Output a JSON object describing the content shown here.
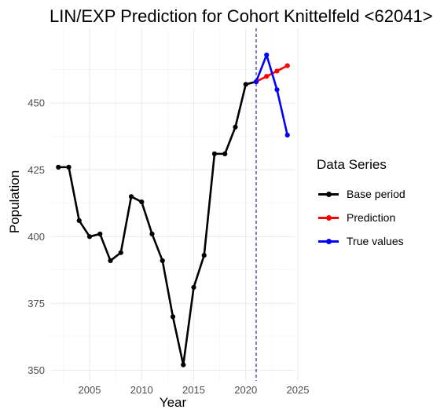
{
  "chart_data": {
    "type": "line",
    "title": "LIN/EXP Prediction for Cohort Knittelfeld <62041>",
    "xlabel": "Year",
    "ylabel": "Population",
    "xlim": [
      2001.3,
      2024.7
    ],
    "ylim": [
      346,
      478
    ],
    "x_ticks": [
      2005,
      2010,
      2015,
      2020,
      2025
    ],
    "y_ticks": [
      350,
      375,
      400,
      425,
      450
    ],
    "grid": true,
    "legend_title": "Data Series",
    "legend_position": "right",
    "vline_x": 2021,
    "series": [
      {
        "name": "Base period",
        "color": "#000000",
        "x": [
          2002,
          2003,
          2004,
          2005,
          2006,
          2007,
          2008,
          2009,
          2010,
          2011,
          2012,
          2013,
          2014,
          2015,
          2016,
          2017,
          2018,
          2019,
          2020,
          2021
        ],
        "y": [
          426,
          426,
          406,
          400,
          401,
          391,
          394,
          415,
          413,
          401,
          391,
          370,
          352,
          381,
          393,
          431,
          431,
          441,
          457,
          458
        ]
      },
      {
        "name": "Prediction",
        "color": "#ff0000",
        "x": [
          2021,
          2022,
          2023,
          2024
        ],
        "y": [
          458,
          460,
          462,
          464
        ]
      },
      {
        "name": "True values",
        "color": "#0000ff",
        "x": [
          2021,
          2022,
          2023,
          2024
        ],
        "y": [
          458,
          468,
          455,
          438
        ]
      }
    ]
  }
}
